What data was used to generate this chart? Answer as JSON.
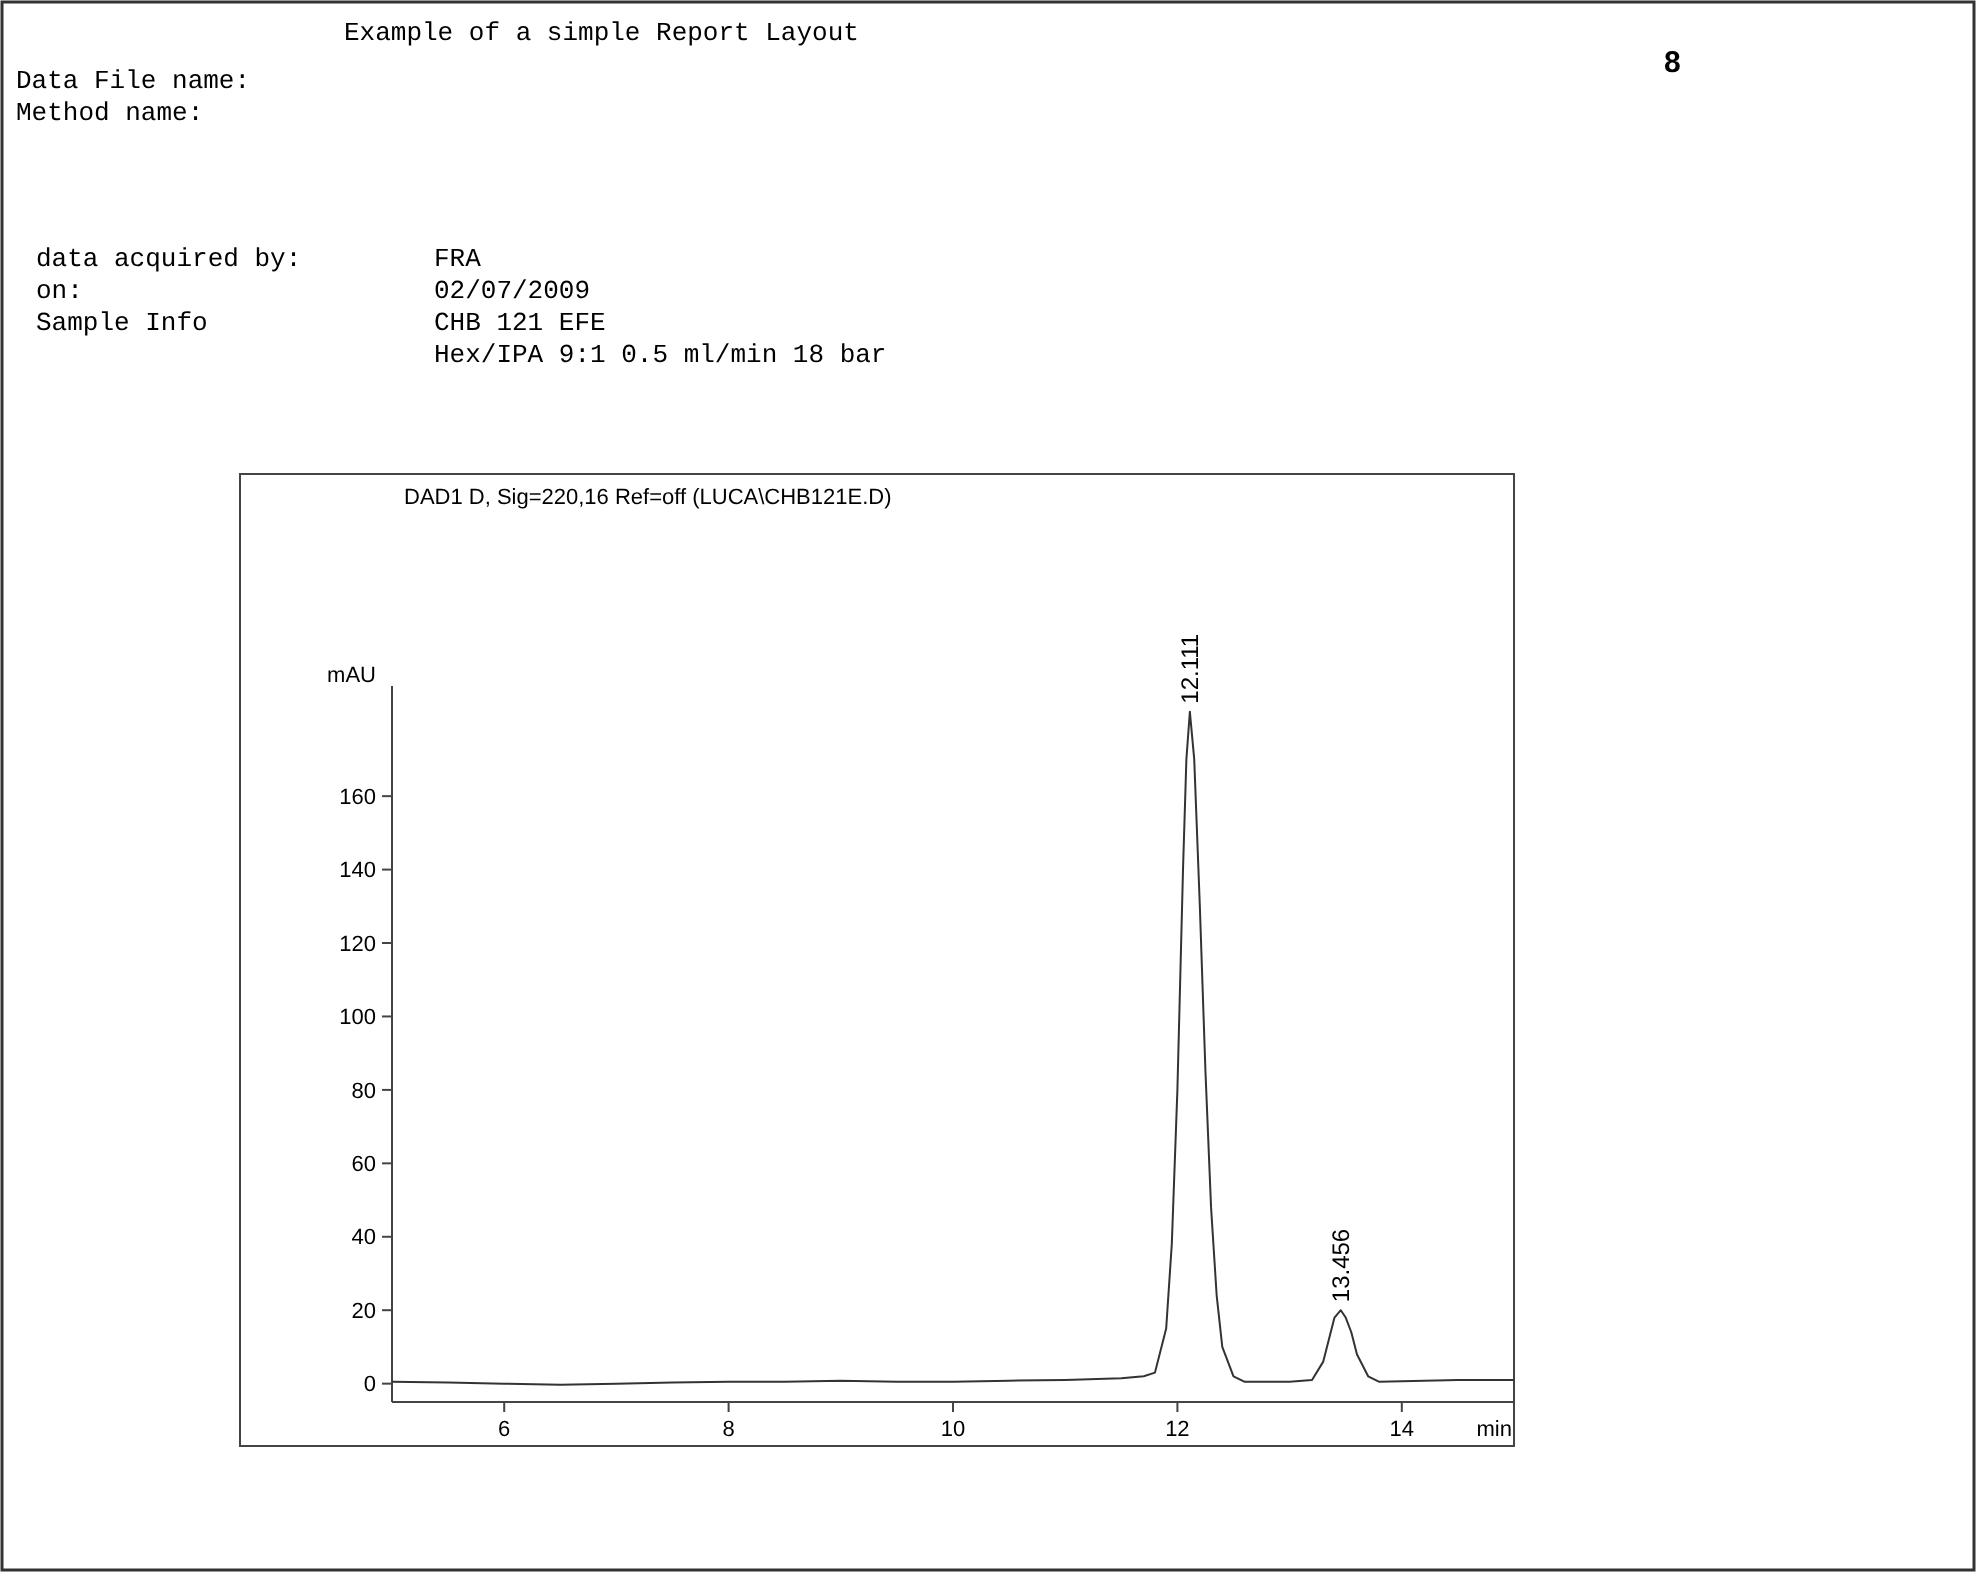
{
  "chart_data": {
    "type": "line",
    "title": "Example of a simple Report Layout",
    "subtitle": "DAD1 D, Sig=220,16 Ref=off (LUCA\\CHB121E.D)",
    "xlabel": "min",
    "ylabel": "mAU",
    "annotations": [
      "8",
      "Data File name:",
      "Method name:",
      "data acquired by:",
      "FRA",
      "on:",
      "02/07/2009",
      "Sample Info",
      "CHB 121 EFE",
      "Hex/IPA 9:1 0.5 ml/min 18 bar",
      {
        "text": "12.111",
        "x": 12.111,
        "y": 183
      },
      {
        "text": "13.456",
        "x": 13.456,
        "y": 20
      }
    ],
    "xlim": [
      5,
      15
    ],
    "xticks": [
      6,
      8,
      10,
      12,
      14
    ],
    "ylim": [
      -5,
      190
    ],
    "yticks": [
      0,
      20,
      40,
      60,
      80,
      100,
      120,
      140,
      160
    ],
    "marker": "none",
    "line_style": "solid",
    "series": [
      {
        "color": "#333333",
        "x": [
          5,
          5.5,
          6,
          6.5,
          7,
          7.5,
          8,
          8.5,
          9,
          9.5,
          10,
          10.5,
          11,
          11.5,
          11.7,
          11.8,
          11.9,
          11.95,
          12.0,
          12.05,
          12.08,
          12.111,
          12.15,
          12.2,
          12.25,
          12.3,
          12.35,
          12.4,
          12.5,
          12.6,
          13.0,
          13.2,
          13.3,
          13.35,
          13.4,
          13.456,
          13.5,
          13.55,
          13.6,
          13.7,
          13.8,
          14.5,
          15
        ],
        "values": [
          0.5,
          0.3,
          0,
          -0.3,
          0,
          0.3,
          0.5,
          0.5,
          0.8,
          0.5,
          0.5,
          0.8,
          1,
          1.5,
          2,
          3,
          15,
          38,
          80,
          140,
          170,
          183,
          170,
          130,
          85,
          48,
          24,
          10,
          2,
          0.5,
          0.5,
          1,
          6,
          12,
          18,
          20,
          18,
          14,
          8,
          2,
          0.5,
          1,
          1
        ]
      }
    ]
  }
}
